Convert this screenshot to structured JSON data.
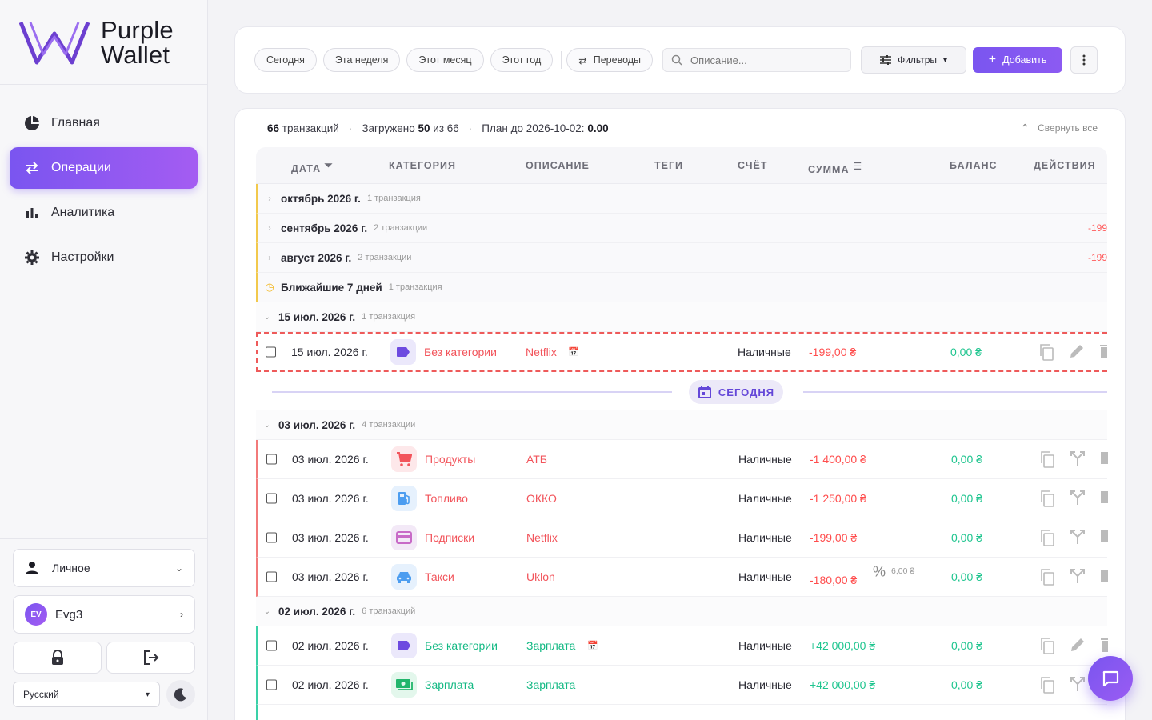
{
  "brand": {
    "line1": "Purple",
    "line2": "Wallet"
  },
  "nav": [
    {
      "label": "Главная",
      "icon": "pie-chart-icon"
    },
    {
      "label": "Операции",
      "icon": "swap-icon"
    },
    {
      "label": "Аналитика",
      "icon": "bar-chart-icon"
    },
    {
      "label": "Настройки",
      "icon": "gear-icon"
    }
  ],
  "sidebar_bottom": {
    "profile": "Личное",
    "user_initials": "EV",
    "user_name": "Evg3",
    "language": "Русский"
  },
  "toolbar": {
    "chips": [
      "Сегодня",
      "Эта неделя",
      "Этот месяц",
      "Этот год"
    ],
    "transfers": "Переводы",
    "search_placeholder": "Описание...",
    "filters": "Фильтры",
    "add": "Добавить"
  },
  "summary": {
    "count": "66",
    "count_label": "транзакций",
    "loaded_label": "Загружено",
    "loaded": "50",
    "of_label": "из 66",
    "plan_label": "План до 2026-10-02:",
    "plan_value": "0.00",
    "collapse": "Свернуть все"
  },
  "columns": [
    "ДАТА",
    "КАТЕГОРИЯ",
    "ОПИСАНИЕ",
    "ТЕГИ",
    "СЧЁТ",
    "СУММА",
    "БАЛАНС",
    "ДЕЙСТВИЯ"
  ],
  "groups_top": [
    {
      "name": "октябрь 2026 г.",
      "count": "1 транзакция",
      "neg": ""
    },
    {
      "name": "сентябрь 2026 г.",
      "count": "2 транзакции",
      "neg": "-199"
    },
    {
      "name": "август 2026 г.",
      "count": "2 транзакции",
      "neg": "-199"
    },
    {
      "name": "Ближайшие 7 дней",
      "count": "1 транзакция",
      "neg": ""
    }
  ],
  "group_jul15": {
    "name": "15 июл. 2026 г.",
    "count": "1 транзакция"
  },
  "row_planned": {
    "date": "15 июл. 2026 г.",
    "category": "Без категории",
    "desc": "Netflix",
    "account": "Наличные",
    "amount": "-199,00 ₴",
    "balance": "0,00 ₴"
  },
  "today_label": "СЕГОДНЯ",
  "group_jul03": {
    "name": "03 июл. 2026 г.",
    "count": "4 транзакции"
  },
  "rows_jul03": [
    {
      "date": "03 июл. 2026 г.",
      "category": "Продукты",
      "desc": "АТБ",
      "account": "Наличные",
      "amount": "-1 400,00 ₴",
      "balance": "0,00 ₴"
    },
    {
      "date": "03 июл. 2026 г.",
      "category": "Топливо",
      "desc": "ОККО",
      "account": "Наличные",
      "amount": "-1 250,00 ₴",
      "balance": "0,00 ₴"
    },
    {
      "date": "03 июл. 2026 г.",
      "category": "Подписки",
      "desc": "Netflix",
      "account": "Наличные",
      "amount": "-199,00 ₴",
      "balance": "0,00 ₴"
    },
    {
      "date": "03 июл. 2026 г.",
      "category": "Такси",
      "desc": "Uklon",
      "account": "Наличные",
      "amount": "-180,00 ₴",
      "fee": "6,00 ₴",
      "balance": "0,00 ₴"
    }
  ],
  "group_jul02": {
    "name": "02 июл. 2026 г.",
    "count": "6 транзакций"
  },
  "rows_jul02": [
    {
      "date": "02 июл. 2026 г.",
      "category": "Без категории",
      "desc": "Зарплата",
      "account": "Наличные",
      "amount": "+42 000,00 ₴",
      "balance": "0,00 ₴"
    },
    {
      "date": "02 июл. 2026 г.",
      "category": "Зарплата",
      "desc": "Зарплата",
      "account": "Наличные",
      "amount": "+42 000,00 ₴",
      "balance": "0,00 ₴"
    }
  ]
}
